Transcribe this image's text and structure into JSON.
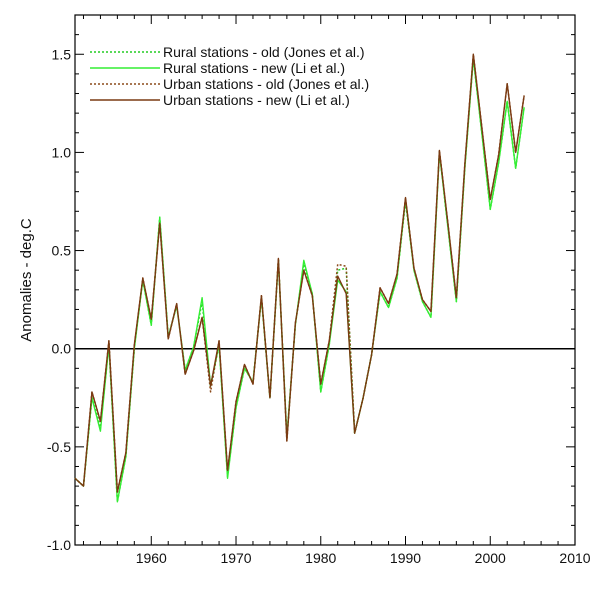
{
  "chart_data": {
    "type": "line",
    "title": "",
    "xlabel": "",
    "ylabel": "Anomalies - deg.C",
    "xlim": [
      1951,
      2010
    ],
    "ylim": [
      -1.0,
      1.7
    ],
    "x_ticks": [
      1960,
      1970,
      1980,
      1990,
      2000,
      2010
    ],
    "y_ticks": [
      -1.0,
      -0.5,
      0.0,
      0.5,
      1.0,
      1.5
    ],
    "x_tick_labels": [
      "1960",
      "1970",
      "1980",
      "1990",
      "2000",
      "2010"
    ],
    "y_tick_labels": [
      "-1.0",
      "-0.5",
      "0.0",
      "0.5",
      "1.0",
      "1.5"
    ],
    "zero_line": 0.0,
    "grid": false,
    "legend_position": "top-left",
    "x": [
      1951,
      1952,
      1953,
      1954,
      1955,
      1956,
      1957,
      1958,
      1959,
      1960,
      1961,
      1962,
      1963,
      1964,
      1965,
      1966,
      1967,
      1968,
      1969,
      1970,
      1971,
      1972,
      1973,
      1974,
      1975,
      1976,
      1977,
      1978,
      1979,
      1980,
      1981,
      1982,
      1983,
      1984,
      1985,
      1986,
      1987,
      1988,
      1989,
      1990,
      1991,
      1992,
      1993,
      1994,
      1995,
      1996,
      1997,
      1998,
      1999,
      2000,
      2001,
      2002,
      2003,
      2004
    ],
    "series": [
      {
        "name": "Rural stations - old (Jones et al.)",
        "color": "#22cc22",
        "dash": "dotted",
        "values": [
          -0.66,
          -0.7,
          -0.25,
          -0.4,
          0.02,
          -0.78,
          -0.55,
          0.0,
          0.35,
          0.12,
          0.67,
          0.06,
          0.22,
          -0.11,
          0.01,
          0.24,
          -0.19,
          0.02,
          -0.65,
          -0.3,
          -0.1,
          -0.17,
          0.26,
          -0.25,
          0.45,
          -0.45,
          0.12,
          0.43,
          0.28,
          -0.22,
          0.02,
          0.4,
          0.41,
          -0.43,
          -0.25,
          -0.03,
          0.29,
          0.21,
          0.36,
          0.75,
          0.4,
          0.24,
          0.16,
          1.0,
          0.62,
          0.24,
          0.92,
          1.48,
          1.1,
          0.71,
          0.95,
          1.26,
          0.92,
          1.23
        ]
      },
      {
        "name": "Rural stations - new (Li et al.)",
        "color": "#33ee33",
        "dash": "solid",
        "values": [
          -0.66,
          -0.7,
          -0.25,
          -0.42,
          0.02,
          -0.78,
          -0.55,
          0.0,
          0.35,
          0.12,
          0.67,
          0.06,
          0.22,
          -0.11,
          0.01,
          0.26,
          -0.19,
          0.02,
          -0.66,
          -0.3,
          -0.1,
          -0.17,
          0.26,
          -0.25,
          0.45,
          -0.45,
          0.12,
          0.45,
          0.28,
          -0.22,
          0.02,
          0.35,
          0.29,
          -0.43,
          -0.25,
          -0.03,
          0.29,
          0.21,
          0.36,
          0.76,
          0.4,
          0.24,
          0.16,
          1.0,
          0.62,
          0.24,
          0.92,
          1.48,
          1.1,
          0.71,
          0.95,
          1.26,
          0.92,
          1.23
        ]
      },
      {
        "name": "Urban stations - old (Jones et al.)",
        "color": "#8b4a1a",
        "dash": "dotted",
        "values": [
          -0.66,
          -0.7,
          -0.22,
          -0.37,
          0.04,
          -0.73,
          -0.53,
          0.02,
          0.36,
          0.15,
          0.64,
          0.05,
          0.23,
          -0.13,
          -0.01,
          0.16,
          -0.22,
          0.04,
          -0.62,
          -0.27,
          -0.08,
          -0.18,
          0.27,
          -0.25,
          0.46,
          -0.47,
          0.13,
          0.4,
          0.27,
          -0.18,
          0.04,
          0.43,
          0.42,
          -0.43,
          -0.25,
          -0.03,
          0.31,
          0.23,
          0.38,
          0.77,
          0.41,
          0.25,
          0.19,
          1.01,
          0.64,
          0.26,
          0.94,
          1.5,
          1.13,
          0.76,
          0.99,
          1.35,
          1.0,
          1.29
        ]
      },
      {
        "name": "Urban stations - new (Li et al.)",
        "color": "#7a3a12",
        "dash": "solid",
        "values": [
          -0.66,
          -0.7,
          -0.22,
          -0.37,
          0.04,
          -0.73,
          -0.53,
          0.02,
          0.36,
          0.15,
          0.64,
          0.05,
          0.23,
          -0.13,
          -0.01,
          0.16,
          -0.19,
          0.04,
          -0.62,
          -0.27,
          -0.08,
          -0.18,
          0.27,
          -0.25,
          0.46,
          -0.47,
          0.13,
          0.4,
          0.27,
          -0.18,
          0.04,
          0.37,
          0.28,
          -0.43,
          -0.25,
          -0.03,
          0.31,
          0.23,
          0.38,
          0.77,
          0.41,
          0.25,
          0.19,
          1.01,
          0.64,
          0.26,
          0.94,
          1.5,
          1.13,
          0.76,
          0.99,
          1.35,
          1.0,
          1.29
        ]
      }
    ]
  }
}
